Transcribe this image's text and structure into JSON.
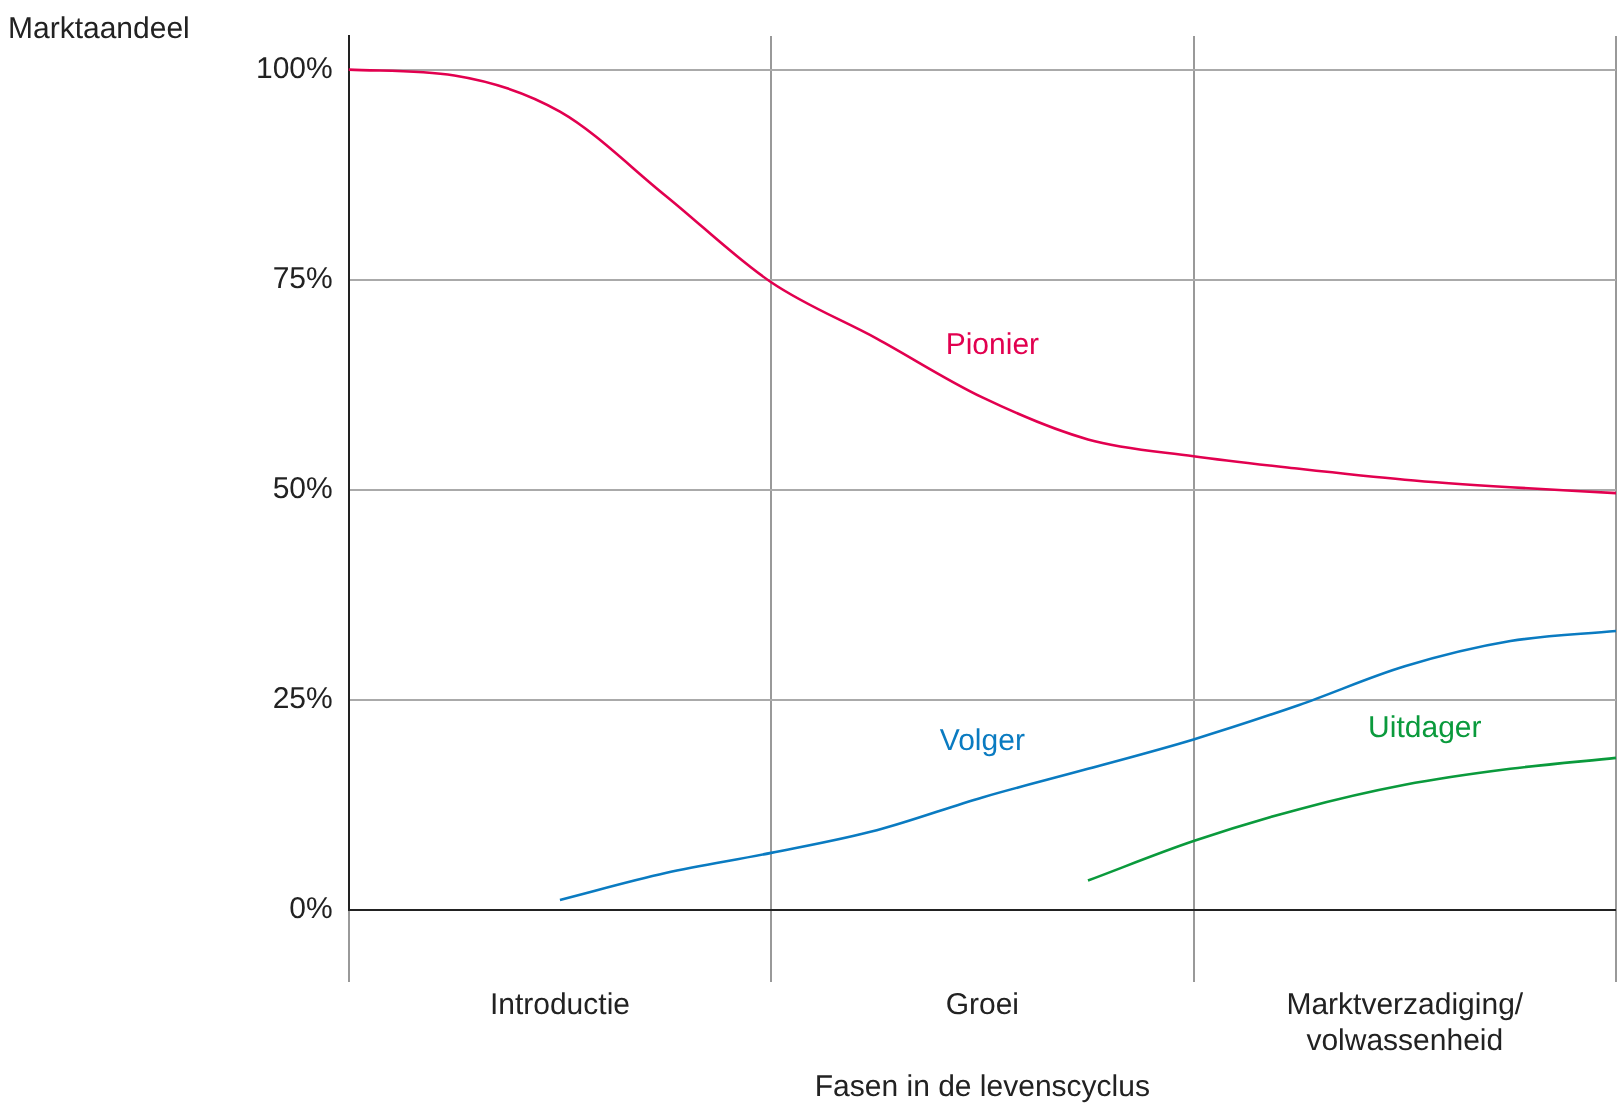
{
  "chart_data": {
    "type": "line",
    "xlabel": "Fasen in de levenscyclus",
    "ylabel": "Marktaandeel",
    "categories": [
      null,
      null,
      "Introductie",
      null,
      null,
      null,
      "Groei",
      null,
      null,
      null,
      "Marktverzadiging/\nvolwassenheid",
      null,
      null
    ],
    "ylim": [
      0,
      104
    ],
    "yticks": [
      {
        "value": 0,
        "label": "0%"
      },
      {
        "value": 25,
        "label": "25%"
      },
      {
        "value": 50,
        "label": "50%"
      },
      {
        "value": 75,
        "label": "75%"
      },
      {
        "value": 100,
        "label": "100%"
      }
    ],
    "grid": true,
    "legend": false,
    "marker": "none",
    "line_style": "solid",
    "series": [
      {
        "name": "Pionier",
        "color": "#e2004f",
        "values": [
          100,
          99.3,
          95,
          85,
          74.7,
          68,
          61,
          56,
          54,
          52.5,
          51.2,
          50.3,
          49.6
        ]
      },
      {
        "name": "Volger",
        "color": "#0a7bc1",
        "values": [
          null,
          null,
          1.2,
          4.4,
          6.8,
          9.5,
          13.4,
          16.8,
          20.3,
          24.4,
          29,
          32,
          33.2
        ]
      },
      {
        "name": "Uitdager",
        "color": "#0a9a3c",
        "values": [
          null,
          null,
          null,
          null,
          null,
          null,
          null,
          3.5,
          8.2,
          12,
          14.9,
          16.8,
          18.1
        ]
      }
    ]
  }
}
